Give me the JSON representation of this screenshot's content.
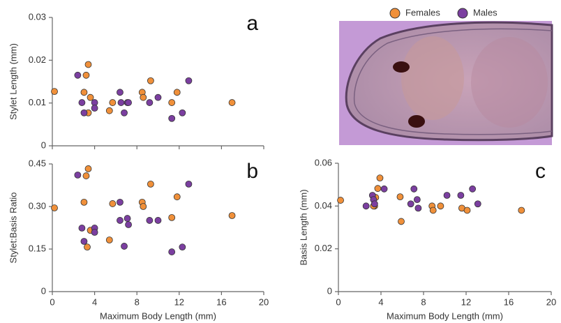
{
  "chart_data": [
    {
      "type": "scatter",
      "label": "a",
      "y_label": "Stylet Length (mm)",
      "xlim": [
        0,
        20
      ],
      "xticks": [
        0,
        4,
        8,
        12,
        16,
        20
      ],
      "ylim": [
        0,
        0.03
      ],
      "yticks": [
        0,
        0.01,
        0.02,
        0.03
      ],
      "series": [
        {
          "name": "Females",
          "color": "#f0903a",
          "x": [
            0.2,
            3.4,
            3.2,
            3.0,
            3.6,
            3.4,
            5.7,
            5.4,
            8.5,
            8.6,
            9.3,
            11.3,
            11.8,
            17.0
          ],
          "values": [
            0.0127,
            0.019,
            0.0165,
            0.0125,
            0.0113,
            0.0077,
            0.0101,
            0.0082,
            0.0125,
            0.0113,
            0.0152,
            0.0101,
            0.0125,
            0.0101
          ]
        },
        {
          "name": "Males",
          "color": "#7b3fa0",
          "x": [
            2.4,
            2.8,
            3.0,
            4.0,
            4.0,
            6.4,
            6.5,
            6.8,
            7.1,
            7.2,
            9.2,
            10.0,
            11.3,
            12.3,
            12.9
          ],
          "values": [
            0.0165,
            0.0101,
            0.0077,
            0.0101,
            0.0088,
            0.0125,
            0.0101,
            0.0077,
            0.0101,
            0.0101,
            0.0101,
            0.0113,
            0.0064,
            0.0077,
            0.0152
          ]
        }
      ]
    },
    {
      "type": "scatter",
      "label": "b",
      "y_label": "Stylet:Basis Ratio",
      "x_label": "Maximum Body Length (mm)",
      "xlim": [
        0,
        20
      ],
      "xticks": [
        0,
        4,
        8,
        12,
        16,
        20
      ],
      "ylim": [
        0,
        0.45
      ],
      "yticks": [
        0,
        0.15,
        {
          "value": 0.3,
          "label": "0.30"
        },
        0.45
      ],
      "series": [
        {
          "color": "#f0903a",
          "x": [
            0.2,
            3.2,
            3.4,
            3.0,
            3.6,
            3.3,
            5.7,
            5.4,
            8.5,
            8.6,
            9.3,
            11.3,
            11.8,
            17.0
          ],
          "values": [
            0.295,
            0.408,
            0.433,
            0.315,
            0.216,
            0.157,
            0.31,
            0.182,
            0.315,
            0.3,
            0.379,
            0.261,
            0.334,
            0.268
          ]
        },
        {
          "color": "#7b3fa0",
          "x": [
            2.4,
            2.8,
            3.0,
            4.0,
            4.0,
            6.4,
            6.4,
            6.8,
            7.1,
            7.2,
            9.2,
            10.0,
            11.3,
            12.3,
            12.9
          ],
          "values": [
            0.411,
            0.224,
            0.177,
            0.224,
            0.209,
            0.315,
            0.251,
            0.16,
            0.258,
            0.236,
            0.251,
            0.251,
            0.14,
            0.157,
            0.379
          ]
        }
      ]
    },
    {
      "type": "scatter",
      "label": "c",
      "y_label": "Basis Length (mm)",
      "x_label": "Maximum Body Length (mm)",
      "xlim": [
        0,
        20
      ],
      "xticks": [
        0,
        4,
        8,
        12,
        16,
        20
      ],
      "ylim": [
        0,
        0.06
      ],
      "yticks": [
        0,
        0.02,
        0.04,
        0.06
      ],
      "series": [
        {
          "color": "#f0903a",
          "x": [
            0.2,
            3.9,
            3.7,
            3.4,
            3.5,
            3.3,
            5.9,
            5.8,
            8.8,
            8.9,
            9.6,
            11.6,
            12.1,
            17.2
          ],
          "values": [
            0.0427,
            0.0531,
            0.0482,
            0.04,
            0.044,
            0.04,
            0.0328,
            0.0443,
            0.04,
            0.038,
            0.04,
            0.039,
            0.038,
            0.038
          ]
        },
        {
          "color": "#7b3fa0",
          "x": [
            2.6,
            3.2,
            3.3,
            3.4,
            4.3,
            6.8,
            7.1,
            7.4,
            7.5,
            10.2,
            11.5,
            12.6,
            13.1
          ],
          "values": [
            0.04,
            0.045,
            0.043,
            0.041,
            0.048,
            0.041,
            0.048,
            0.043,
            0.039,
            0.045,
            0.045,
            0.048,
            0.041
          ]
        }
      ]
    }
  ]
}
